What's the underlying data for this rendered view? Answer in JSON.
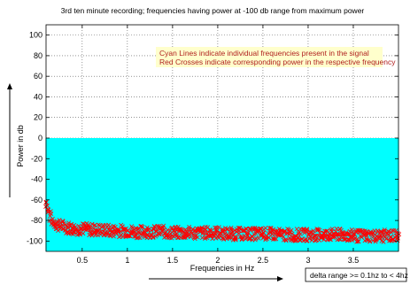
{
  "chart_data": {
    "type": "line",
    "title": "3rd ten minute recording; frequencies having power at -100 db range from maximum power",
    "xlabel": "Frequencies in Hz",
    "ylabel": "Power in db",
    "xlim": [
      0.1,
      4.0
    ],
    "ylim": [
      -110,
      110
    ],
    "xticks": [
      0.5,
      1,
      1.5,
      2,
      2.5,
      3,
      3.5
    ],
    "xtick_labels": [
      "0.5",
      "1",
      "1.5",
      "2",
      "2.5",
      "3",
      "3.5"
    ],
    "yticks": [
      -100,
      -80,
      -60,
      -40,
      -20,
      0,
      20,
      40,
      60,
      80,
      100
    ],
    "ytick_labels": [
      "-100",
      "-80",
      "-60",
      "-40",
      "-20",
      "0",
      "20",
      "40",
      "60",
      "80",
      "100"
    ],
    "grid": true,
    "annotations": [
      "Cyan Lines indicate individual frequencies present in the signal",
      "Red Crosses indicate corresponding power in the respective frequency"
    ],
    "note": "delta range >= 0.1hz to < 4hz",
    "series": [
      {
        "name": "Cyan Lines",
        "style": "vertical-lines",
        "color": "#00ffff",
        "x_range": [
          0.1,
          4.0
        ],
        "y_top": 0
      },
      {
        "name": "Red Crosses",
        "style": "markers",
        "color": "#ff0000",
        "x": [
          0.1,
          0.15,
          0.2,
          0.25,
          0.3,
          0.4,
          0.5,
          0.6,
          0.7,
          0.8,
          0.9,
          1.0,
          1.1,
          1.2,
          1.3,
          1.4,
          1.5,
          1.6,
          1.7,
          1.8,
          1.9,
          2.0,
          2.1,
          2.2,
          2.3,
          2.4,
          2.5,
          2.6,
          2.7,
          2.8,
          2.9,
          3.0,
          3.1,
          3.2,
          3.3,
          3.4,
          3.5,
          3.6,
          3.7,
          3.8,
          3.9,
          3.98
        ],
        "y": [
          -62,
          -78,
          -83,
          -85,
          -86,
          -88,
          -88,
          -89,
          -89,
          -90,
          -90,
          -90,
          -91,
          -91,
          -91,
          -91,
          -92,
          -92,
          -92,
          -92,
          -92,
          -92,
          -93,
          -93,
          -93,
          -93,
          -93,
          -93,
          -94,
          -94,
          -94,
          -94,
          -94,
          -94,
          -94,
          -94,
          -95,
          -95,
          -95,
          -95,
          -95,
          -95
        ]
      }
    ]
  }
}
